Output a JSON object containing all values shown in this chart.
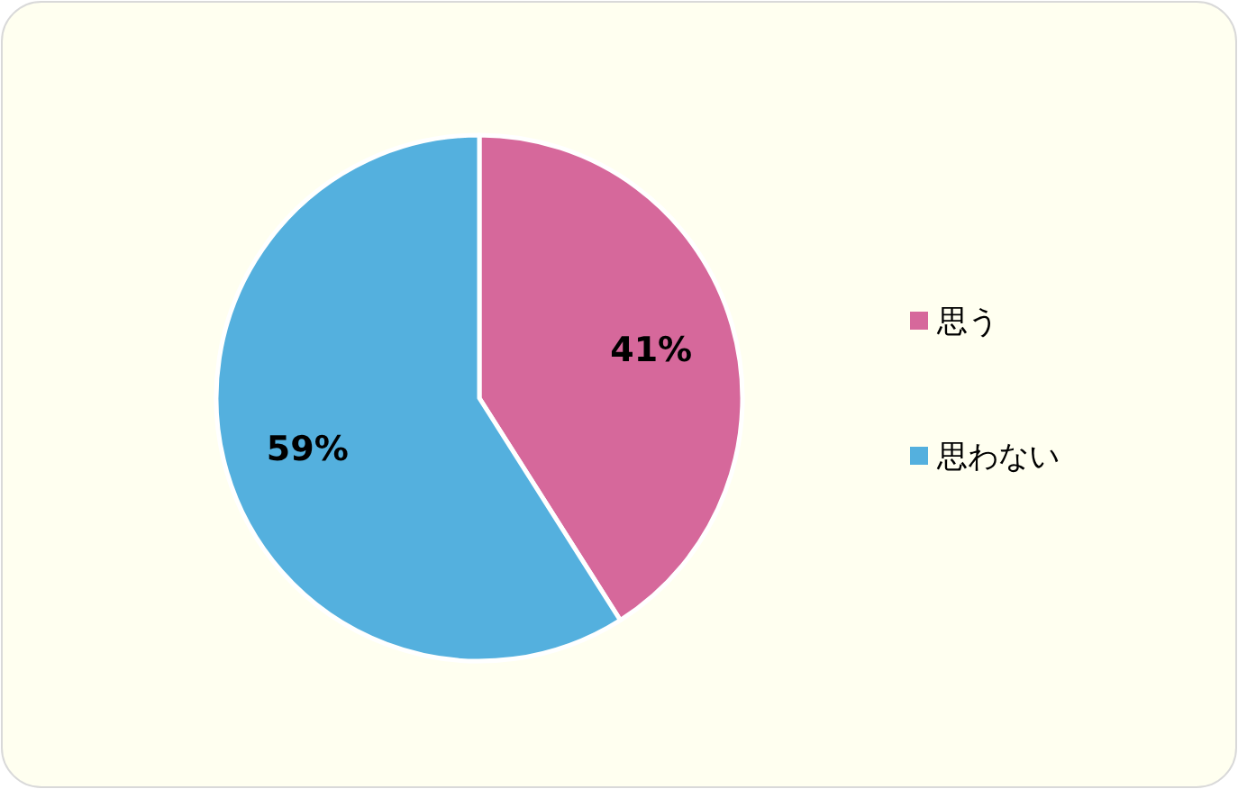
{
  "chart_data": {
    "type": "pie",
    "categories": [
      "思う",
      "思わない"
    ],
    "values": [
      41,
      59
    ],
    "colors": [
      "#d6689b",
      "#54b0de"
    ],
    "value_labels": [
      "41%",
      "59%"
    ],
    "legend": "right"
  }
}
